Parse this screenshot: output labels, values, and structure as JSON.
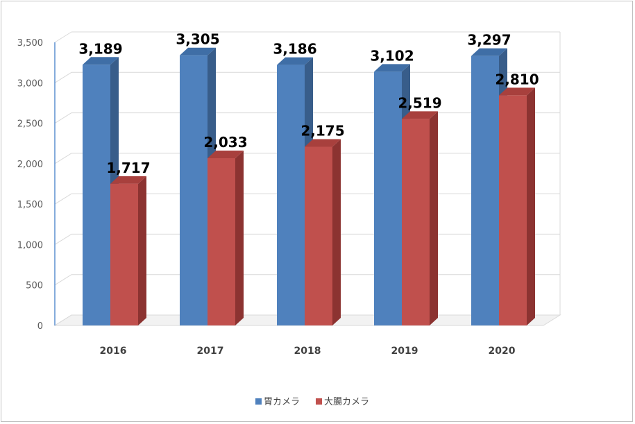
{
  "chart_data": {
    "type": "bar",
    "style": "3d-clustered",
    "categories": [
      "2016",
      "2017",
      "2018",
      "2019",
      "2020"
    ],
    "series": [
      {
        "name": "胃カメラ",
        "values": [
          3189,
          3305,
          3186,
          3102,
          3297
        ],
        "color": "#4f81bd",
        "side_color": "#385d8a",
        "top_color": "#3f6ea6"
      },
      {
        "name": "大腸カメラ",
        "values": [
          1717,
          2033,
          2175,
          2519,
          2810
        ],
        "color": "#c0504d",
        "side_color": "#8c3331",
        "top_color": "#a8403d"
      }
    ],
    "data_labels": {
      "series0": [
        "3,189",
        "3,305",
        "3,186",
        "3,102",
        "3,297"
      ],
      "series1": [
        "1,717",
        "2,033",
        "2,175",
        "2,519",
        "2,810"
      ]
    },
    "y_ticks": [
      "0",
      "500",
      "1,000",
      "1,500",
      "2,000",
      "2,500",
      "3,000",
      "3,500"
    ],
    "ylim": [
      0,
      3500
    ],
    "grid": true,
    "legend": "bottom",
    "wall_color": "#ffffff",
    "grid_color": "#d9d9d9",
    "axis_color": "#5b8fd1"
  }
}
